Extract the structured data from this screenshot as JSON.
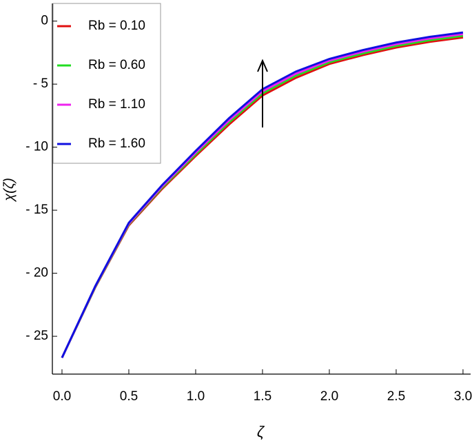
{
  "chart_data": {
    "type": "line",
    "x_label": "ζ",
    "y_label": "χ(ζ)",
    "x": [
      0,
      0.25,
      0.5,
      0.75,
      1.0,
      1.25,
      1.5,
      1.75,
      2.0,
      2.25,
      2.5,
      2.75,
      3.0
    ],
    "series": [
      {
        "name": "Rb = 0.10",
        "color": "#e01010",
        "values": [
          -26.7,
          -21.1,
          -16.2,
          -13.3,
          -10.7,
          -8.2,
          -5.9,
          -4.5,
          -3.4,
          -2.7,
          -2.1,
          -1.65,
          -1.3
        ]
      },
      {
        "name": "Rb = 0.60",
        "color": "#22dd22",
        "values": [
          -26.7,
          -21.07,
          -16.13,
          -13.2,
          -10.57,
          -8.03,
          -5.73,
          -4.33,
          -3.27,
          -2.57,
          -1.97,
          -1.52,
          -1.17
        ]
      },
      {
        "name": "Rb = 1.10",
        "color": "#ee22ee",
        "values": [
          -26.7,
          -21.03,
          -16.07,
          -13.1,
          -10.43,
          -7.87,
          -5.57,
          -4.17,
          -3.13,
          -2.43,
          -1.83,
          -1.38,
          -1.03
        ]
      },
      {
        "name": "Rb = 1.60",
        "color": "#1010e0",
        "values": [
          -26.7,
          -21.0,
          -16.0,
          -13.0,
          -10.3,
          -7.7,
          -5.4,
          -4.0,
          -3.0,
          -2.3,
          -1.7,
          -1.25,
          -0.9
        ]
      }
    ],
    "xlim": [
      -0.072,
      3.057
    ],
    "ylim": [
      -28,
      1.4
    ],
    "xticks": [
      {
        "value": 0,
        "label": "0.0"
      },
      {
        "value": 0.5,
        "label": "0.5"
      },
      {
        "value": 1,
        "label": "1.0"
      },
      {
        "value": 1.5,
        "label": "1.5"
      },
      {
        "value": 2,
        "label": "2.0"
      },
      {
        "value": 2.5,
        "label": "2.5"
      },
      {
        "value": 3,
        "label": "3.0"
      }
    ],
    "yticks": [
      {
        "value": 0,
        "label": "0"
      },
      {
        "value": -5,
        "label": "- 5"
      },
      {
        "value": -10,
        "label": "- 10"
      },
      {
        "value": -15,
        "label": "- 15"
      },
      {
        "value": -20,
        "label": "- 20"
      },
      {
        "value": -25,
        "label": "- 25"
      }
    ],
    "legend": "upper left"
  }
}
